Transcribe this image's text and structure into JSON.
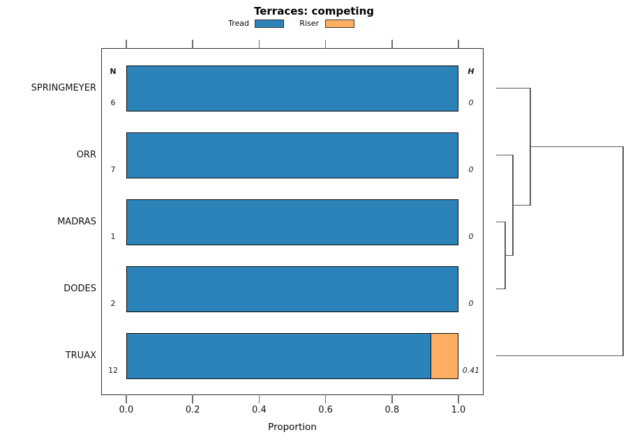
{
  "chart_data": {
    "type": "bar",
    "orientation": "horizontal",
    "stacked": true,
    "title": "Terraces: competing",
    "xlabel": "Proportion",
    "xlim": [
      0,
      1
    ],
    "xticks": [
      0,
      0.2,
      0.4,
      0.6,
      0.8,
      1.0
    ],
    "xtick_labels": [
      "0.0",
      "0.2",
      "0.4",
      "0.6",
      "0.8",
      "1.0"
    ],
    "grid": false,
    "legend": {
      "position": "top",
      "entries": [
        {
          "label": "Tread",
          "color": "#2b83ba"
        },
        {
          "label": "Riser",
          "color": "#fdae61"
        }
      ]
    },
    "categories": [
      "SPRINGMEYER",
      "ORR",
      "MADRAS",
      "DODES",
      "TRUAX"
    ],
    "series": [
      {
        "name": "Tread",
        "color": "#2b83ba",
        "values": [
          1,
          1,
          1,
          1,
          0.918
        ]
      },
      {
        "name": "Riser",
        "color": "#fdae61",
        "values": [
          0,
          0,
          0,
          0,
          0.082
        ]
      }
    ],
    "annotations": {
      "n_header": "N",
      "h_header": "H",
      "n_values": [
        "6",
        "7",
        "1",
        "2",
        "12"
      ],
      "h_values": [
        "0",
        "0",
        "0",
        "0",
        "0.41"
      ]
    },
    "dendrogram": {
      "leaf_order": [
        "SPRINGMEYER",
        "ORR",
        "MADRAS",
        "DODES",
        "TRUAX"
      ],
      "merges": [
        {
          "members": [
            "MADRAS",
            "DODES"
          ],
          "height": 0.066
        },
        {
          "members": [
            "ORR",
            "MADRAS+DODES"
          ],
          "height": 0.127
        },
        {
          "members": [
            "SPRINGMEYER",
            "ORR+MADRAS+DODES"
          ],
          "height": 0.265
        },
        {
          "members": [
            "TRUAX",
            "SPRINGMEYER+ORR+MADRAS+DODES"
          ],
          "height": 1.0
        }
      ],
      "segments": [
        [
          0,
          0,
          0.265,
          0
        ],
        [
          0,
          1,
          0.127,
          1
        ],
        [
          0,
          2,
          0.066,
          2
        ],
        [
          0,
          3,
          0.066,
          3
        ],
        [
          0,
          4,
          1,
          4
        ],
        [
          0.066,
          2,
          0.066,
          3
        ],
        [
          0.066,
          2.5,
          0.127,
          2.5
        ],
        [
          0.127,
          1,
          0.127,
          2.5
        ],
        [
          0.127,
          1.75,
          0.265,
          1.75
        ],
        [
          0.265,
          0,
          0.265,
          1.75
        ],
        [
          0.265,
          0.875,
          1,
          0.875
        ],
        [
          1,
          0.875,
          1,
          4
        ]
      ]
    }
  }
}
